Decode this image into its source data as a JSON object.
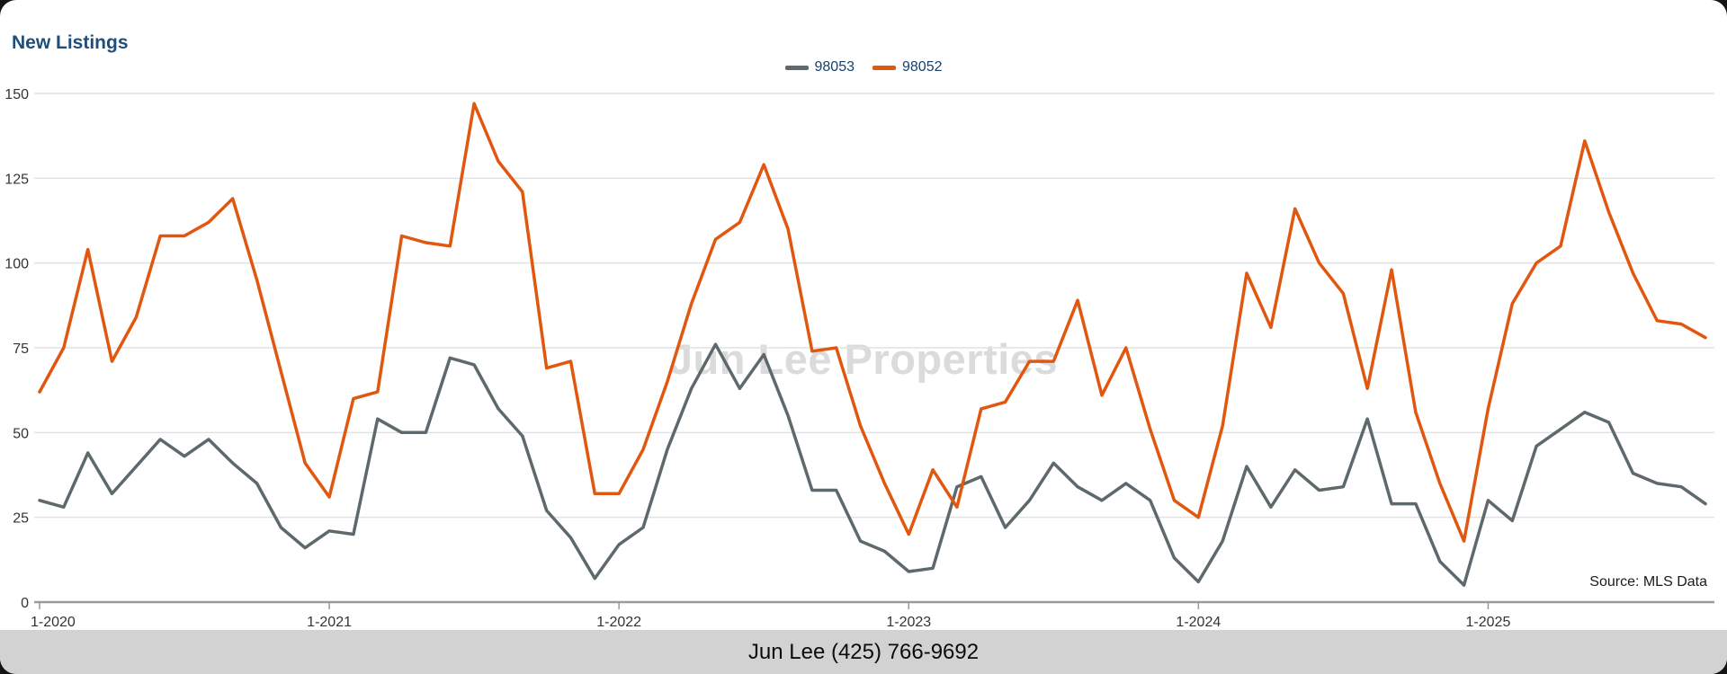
{
  "footer": {
    "text": "Jun Lee (425) 766-9692"
  },
  "chart_data": {
    "type": "line",
    "title": "New Listings",
    "watermark": "Jun Lee Properties",
    "source": "Source: MLS Data",
    "xlabel": "",
    "ylabel": "",
    "ylim": [
      0,
      150
    ],
    "y_ticks": [
      0,
      25,
      50,
      75,
      100,
      125,
      150
    ],
    "grid": true,
    "legend_position": "top",
    "x_tick_labels": [
      "1-2020",
      "1-2021",
      "1-2022",
      "1-2023",
      "1-2024",
      "1-2025"
    ],
    "x": [
      "1-2020",
      "2-2020",
      "3-2020",
      "4-2020",
      "5-2020",
      "6-2020",
      "7-2020",
      "8-2020",
      "9-2020",
      "10-2020",
      "11-2020",
      "12-2020",
      "1-2021",
      "2-2021",
      "3-2021",
      "4-2021",
      "5-2021",
      "6-2021",
      "7-2021",
      "8-2021",
      "9-2021",
      "10-2021",
      "11-2021",
      "12-2021",
      "1-2022",
      "2-2022",
      "3-2022",
      "4-2022",
      "5-2022",
      "6-2022",
      "7-2022",
      "8-2022",
      "9-2022",
      "10-2022",
      "11-2022",
      "12-2022",
      "1-2023",
      "2-2023",
      "3-2023",
      "4-2023",
      "5-2023",
      "6-2023",
      "7-2023",
      "8-2023",
      "9-2023",
      "10-2023",
      "11-2023",
      "12-2023",
      "1-2024",
      "2-2024",
      "3-2024",
      "4-2024",
      "5-2024",
      "6-2024",
      "7-2024",
      "8-2024",
      "9-2024",
      "10-2024",
      "11-2024",
      "12-2024",
      "1-2025",
      "2-2025",
      "3-2025",
      "4-2025",
      "5-2025",
      "6-2025",
      "7-2025",
      "8-2025",
      "9-2025",
      "10-2025"
    ],
    "series": [
      {
        "name": "98053",
        "color": "#5d696c",
        "values": [
          30,
          28,
          44,
          32,
          40,
          48,
          43,
          48,
          41,
          35,
          22,
          16,
          21,
          20,
          54,
          50,
          50,
          72,
          70,
          57,
          49,
          27,
          19,
          7,
          17,
          22,
          45,
          63,
          76,
          63,
          73,
          55,
          33,
          33,
          18,
          15,
          9,
          10,
          34,
          37,
          22,
          30,
          41,
          34,
          30,
          35,
          30,
          13,
          6,
          18,
          40,
          28,
          39,
          33,
          34,
          54,
          29,
          29,
          12,
          5,
          30,
          24,
          46,
          51,
          56,
          53,
          38,
          35,
          34,
          29
        ]
      },
      {
        "name": "98052",
        "color": "#E2570F",
        "values": [
          62,
          75,
          104,
          71,
          84,
          108,
          108,
          112,
          119,
          95,
          68,
          41,
          31,
          60,
          62,
          108,
          106,
          105,
          147,
          130,
          121,
          69,
          71,
          32,
          32,
          45,
          65,
          88,
          107,
          112,
          129,
          110,
          74,
          75,
          52,
          35,
          20,
          39,
          28,
          57,
          59,
          71,
          71,
          89,
          61,
          75,
          51,
          30,
          25,
          52,
          97,
          81,
          116,
          100,
          91,
          63,
          98,
          56,
          35,
          18,
          57,
          88,
          100,
          105,
          136,
          115,
          97,
          83,
          82,
          78
        ]
      }
    ]
  }
}
